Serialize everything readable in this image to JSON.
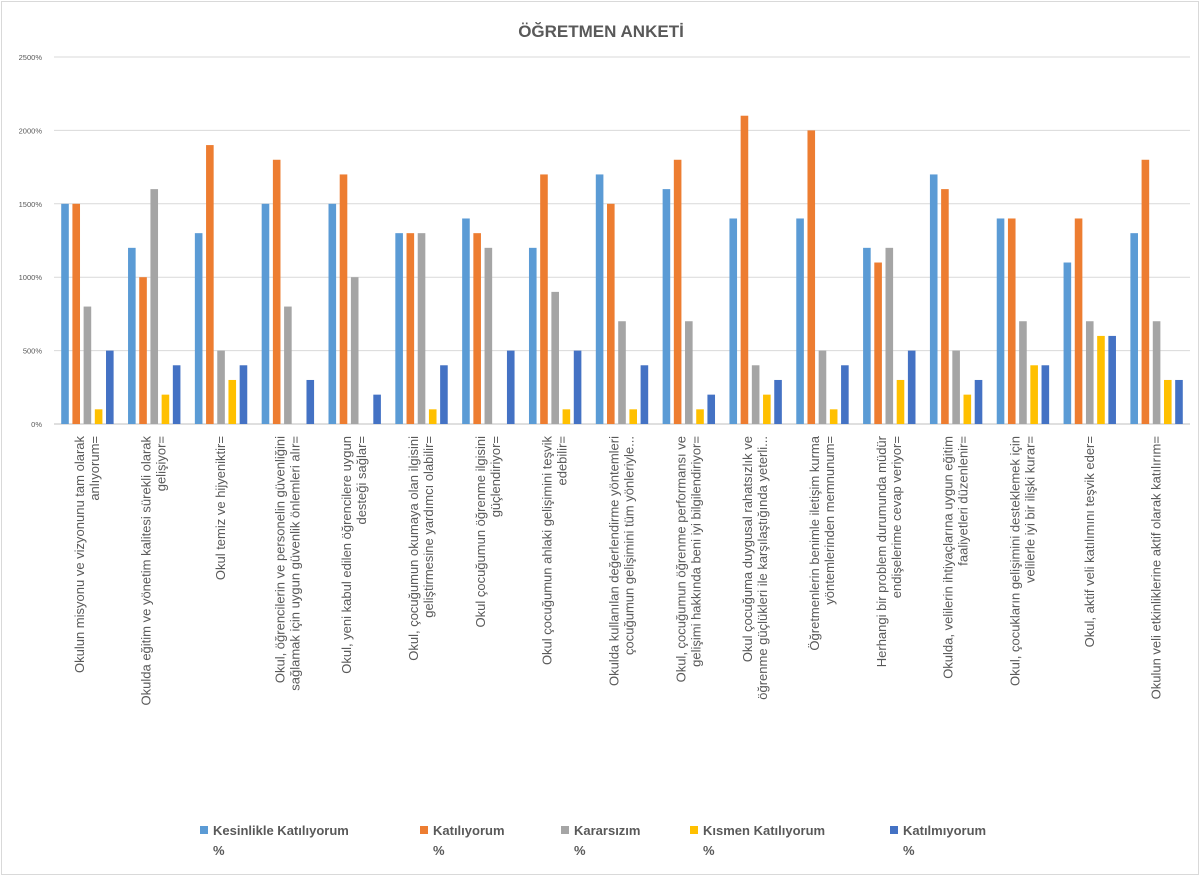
{
  "chart_data": {
    "type": "bar",
    "title": "ÖĞRETMEN ANKETİ",
    "xlabel": "",
    "ylabel": "",
    "ylim": [
      0,
      2500
    ],
    "yticks": [
      0,
      500,
      1000,
      1500,
      2000,
      2500
    ],
    "ytick_labels": [
      "0%",
      "500%",
      "1000%",
      "1500%",
      "2000%",
      "2500%"
    ],
    "grid": true,
    "legend_position": "bottom",
    "categories": [
      [
        "Okulun misyonu ve vizyonunu tam olarak",
        "anlıyorum="
      ],
      [
        "Okulda eğitim ve yönetim kalitesi sürekli olarak",
        "gelişiyor="
      ],
      [
        "Okul temiz ve hijyeniktir="
      ],
      [
        "Okul, öğrencilerin ve personelin güvenliğini",
        "sağlamak için uygun güvenlik önlemleri alır="
      ],
      [
        "Okul, yeni kabul edilen öğrencilere uygun",
        "desteği sağlar="
      ],
      [
        "Okul, çocuğumun okumaya olan ilgisini",
        "geliştirmesine yardımcı olabilir="
      ],
      [
        "Okul çocuğumun öğrenme ilgisini",
        "güçlendiriyor="
      ],
      [
        "Okul çocuğumun ahlaki gelişimini teşvik",
        "edebilir="
      ],
      [
        "Okulda kullanılan değerlendirme yöntemleri",
        "çocuğumun gelişimini tüm yönleriyle..."
      ],
      [
        "Okul, çocuğumun öğrenme performansı ve",
        "gelişimi hakkında beni iyi bilgilendiriyor="
      ],
      [
        "Okul çocuğuma duygusal rahatsızlık ve",
        "öğrenme güçlükleri ile karşılaştığında yeterli..."
      ],
      [
        "Öğretmenlerin benimle iletişim kurma",
        "yöntemlerinden memnunum="
      ],
      [
        "Herhangi bir problem durumunda müdür",
        "endişelerime cevap veriyor="
      ],
      [
        "Okulda, velilerin ihtiyaçlarına uygun eğitim",
        "faaliyetleri düzenlenir="
      ],
      [
        "Okul, çocukların gelişimini desteklemek için",
        "velilerle iyi bir ilişki kurar="
      ],
      [
        "Okul, aktif veli katılımını teşvik eder="
      ],
      [
        "Okulun veli etkinliklerine aktif olarak katılırım="
      ]
    ],
    "series": [
      {
        "name": [
          "Kesinlikle Katılıyorum",
          "%"
        ],
        "color": "#5B9BD5",
        "values": [
          1500,
          1200,
          1300,
          1500,
          1500,
          1300,
          1400,
          1200,
          1700,
          1600,
          1400,
          1400,
          1200,
          1700,
          1400,
          1100,
          1300
        ]
      },
      {
        "name": [
          "Katılıyorum",
          "%"
        ],
        "color": "#ED7D31",
        "values": [
          1500,
          1000,
          1900,
          1800,
          1700,
          1300,
          1300,
          1700,
          1500,
          1800,
          2100,
          2000,
          1100,
          1600,
          1400,
          1400,
          1800
        ]
      },
      {
        "name": [
          "Kararsızım",
          "%"
        ],
        "color": "#A5A5A5",
        "values": [
          800,
          1600,
          500,
          800,
          1000,
          1300,
          1200,
          900,
          700,
          700,
          400,
          500,
          1200,
          500,
          700,
          700,
          700
        ]
      },
      {
        "name": [
          "Kısmen Katılıyorum",
          "%"
        ],
        "color": "#FFC000",
        "values": [
          100,
          200,
          300,
          0,
          0,
          100,
          0,
          100,
          100,
          100,
          200,
          100,
          300,
          200,
          400,
          600,
          300
        ]
      },
      {
        "name": [
          "Katılmıyorum",
          "%"
        ],
        "color": "#4472C4",
        "values": [
          500,
          400,
          400,
          300,
          200,
          400,
          500,
          500,
          400,
          200,
          300,
          400,
          500,
          300,
          400,
          600,
          300
        ]
      }
    ]
  }
}
